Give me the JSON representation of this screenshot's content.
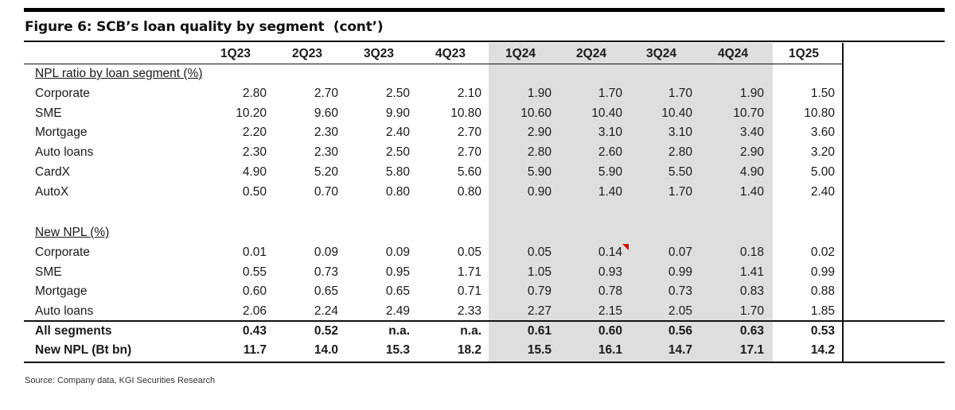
{
  "figure": {
    "title": "Figure 6: SCB’s loan quality by segment  (cont’)",
    "source": "Source: Company data, KGI Securities Research"
  },
  "table": {
    "columns": [
      "1Q23",
      "2Q23",
      "3Q23",
      "4Q23",
      "1Q24",
      "2Q24",
      "3Q24",
      "4Q24",
      "1Q25"
    ],
    "highlighted_columns": [
      "1Q24",
      "2Q24",
      "3Q24",
      "4Q24"
    ],
    "sections": [
      {
        "heading": "NPL ratio by loan segment (%)",
        "rows": [
          {
            "label": "Corporate",
            "values": [
              "2.80",
              "2.70",
              "2.50",
              "2.10",
              "1.90",
              "1.70",
              "1.70",
              "1.90",
              "1.50"
            ]
          },
          {
            "label": "SME",
            "values": [
              "10.20",
              "9.60",
              "9.90",
              "10.80",
              "10.60",
              "10.40",
              "10.40",
              "10.70",
              "10.80"
            ]
          },
          {
            "label": "Mortgage",
            "values": [
              "2.20",
              "2.30",
              "2.40",
              "2.70",
              "2.90",
              "3.10",
              "3.10",
              "3.40",
              "3.60"
            ]
          },
          {
            "label": "Auto loans",
            "values": [
              "2.30",
              "2.30",
              "2.50",
              "2.70",
              "2.80",
              "2.60",
              "2.80",
              "2.90",
              "3.20"
            ]
          },
          {
            "label": "CardX",
            "values": [
              "4.90",
              "5.20",
              "5.80",
              "5.60",
              "5.90",
              "5.90",
              "5.50",
              "4.90",
              "5.00"
            ]
          },
          {
            "label": "AutoX",
            "values": [
              "0.50",
              "0.70",
              "0.80",
              "0.80",
              "0.90",
              "1.40",
              "1.70",
              "1.40",
              "2.40"
            ]
          }
        ]
      },
      {
        "heading": "New NPL (%)",
        "rows": [
          {
            "label": "Corporate",
            "values": [
              "0.01",
              "0.09",
              "0.09",
              "0.05",
              "0.05",
              "0.14",
              "0.07",
              "0.18",
              "0.02"
            ]
          },
          {
            "label": "SME",
            "values": [
              "0.55",
              "0.73",
              "0.95",
              "1.71",
              "1.05",
              "0.93",
              "0.99",
              "1.41",
              "0.99"
            ]
          },
          {
            "label": "Mortgage",
            "values": [
              "0.60",
              "0.65",
              "0.65",
              "0.71",
              "0.79",
              "0.78",
              "0.73",
              "0.83",
              "0.88"
            ]
          },
          {
            "label": "Auto loans",
            "values": [
              "2.06",
              "2.24",
              "2.49",
              "2.33",
              "2.27",
              "2.15",
              "2.05",
              "1.70",
              "1.85"
            ]
          }
        ]
      }
    ],
    "totals": [
      {
        "label": "All segments",
        "values": [
          "0.43",
          "0.52",
          "n.a.",
          "n.a.",
          "0.61",
          "0.60",
          "0.56",
          "0.63",
          "0.53"
        ]
      },
      {
        "label": "New NPL (Bt bn)",
        "values": [
          "11.7",
          "14.0",
          "15.3",
          "18.2",
          "15.5",
          "16.1",
          "14.7",
          "17.1",
          "14.2"
        ]
      }
    ],
    "comment_marker_color": "#d00000"
  }
}
